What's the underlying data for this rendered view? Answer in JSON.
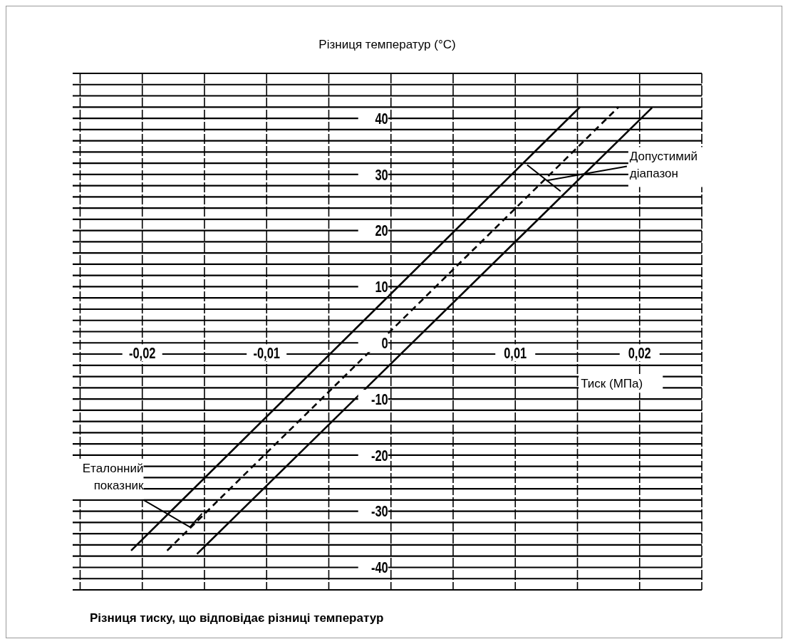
{
  "chart_data": {
    "type": "line",
    "title": "Різниця тиску, що відповідає різниці температур",
    "xlabel": "Тиск (МПа)",
    "ylabel": "Різниця температур (°C)",
    "xlim": [
      -0.0256,
      0.025
    ],
    "ylim": [
      -44,
      48
    ],
    "xticks": [
      {
        "value": -0.025,
        "label": null
      },
      {
        "value": -0.02,
        "label": "-0,02"
      },
      {
        "value": -0.015,
        "label": null
      },
      {
        "value": -0.01,
        "label": "-0,01"
      },
      {
        "value": -0.005,
        "label": null
      },
      {
        "value": 0,
        "label": null
      },
      {
        "value": 0.005,
        "label": null
      },
      {
        "value": 0.01,
        "label": "0,01"
      },
      {
        "value": 0.015,
        "label": null
      },
      {
        "value": 0.02,
        "label": "0,02"
      },
      {
        "value": 0.025,
        "label": null
      }
    ],
    "yticks": [
      {
        "value": -44,
        "label": null
      },
      {
        "value": -42,
        "label": null
      },
      -40,
      {
        "value": -38,
        "label": null
      },
      {
        "value": -36,
        "label": null
      },
      {
        "value": -34,
        "label": null
      },
      {
        "value": -32,
        "label": null
      },
      -30,
      {
        "value": -28,
        "label": null
      },
      {
        "value": -26,
        "label": null
      },
      {
        "value": -24,
        "label": null
      },
      {
        "value": -22,
        "label": null
      },
      -20,
      {
        "value": -18,
        "label": null
      },
      {
        "value": -16,
        "label": null
      },
      {
        "value": -14,
        "label": null
      },
      {
        "value": -12,
        "label": null
      },
      -10,
      {
        "value": -8,
        "label": null
      },
      {
        "value": -6,
        "label": null
      },
      {
        "value": -4,
        "label": null
      },
      {
        "value": -2,
        "label": null
      },
      0,
      {
        "value": 2,
        "label": null
      },
      {
        "value": 4,
        "label": null
      },
      {
        "value": 6,
        "label": null
      },
      {
        "value": 8,
        "label": null
      },
      10,
      {
        "value": 12,
        "label": null
      },
      {
        "value": 14,
        "label": null
      },
      {
        "value": 16,
        "label": null
      },
      {
        "value": 18,
        "label": null
      },
      20,
      {
        "value": 22,
        "label": null
      },
      {
        "value": 24,
        "label": null
      },
      {
        "value": 26,
        "label": null
      },
      {
        "value": 28,
        "label": null
      },
      30,
      {
        "value": 32,
        "label": null
      },
      {
        "value": 34,
        "label": null
      },
      {
        "value": 36,
        "label": null
      },
      {
        "value": 38,
        "label": null
      },
      40,
      {
        "value": 42,
        "label": null
      },
      {
        "value": 44,
        "label": null
      },
      {
        "value": 46,
        "label": null
      },
      {
        "value": 48,
        "label": null
      }
    ],
    "grid": true,
    "series": [
      {
        "color": "#000000",
        "line_style": "solid",
        "x": [
          -0.0209,
          0.0152
        ],
        "values": [
          -37,
          42
        ]
      },
      {
        "color": "#000000",
        "line_style": "dashed",
        "x": [
          -0.018,
          0.0183
        ],
        "values": [
          -37,
          42
        ]
      },
      {
        "color": "#000000",
        "line_style": "solid",
        "x": [
          -0.0156,
          0.021
        ],
        "values": [
          -37.6,
          41.9
        ]
      }
    ],
    "annotations": [
      {
        "text": "Допустимий діапазон",
        "x": 0.0125,
        "y": 28.9
      },
      {
        "text": "Еталонний показник",
        "x": -0.0152,
        "y": -30.4
      }
    ]
  }
}
